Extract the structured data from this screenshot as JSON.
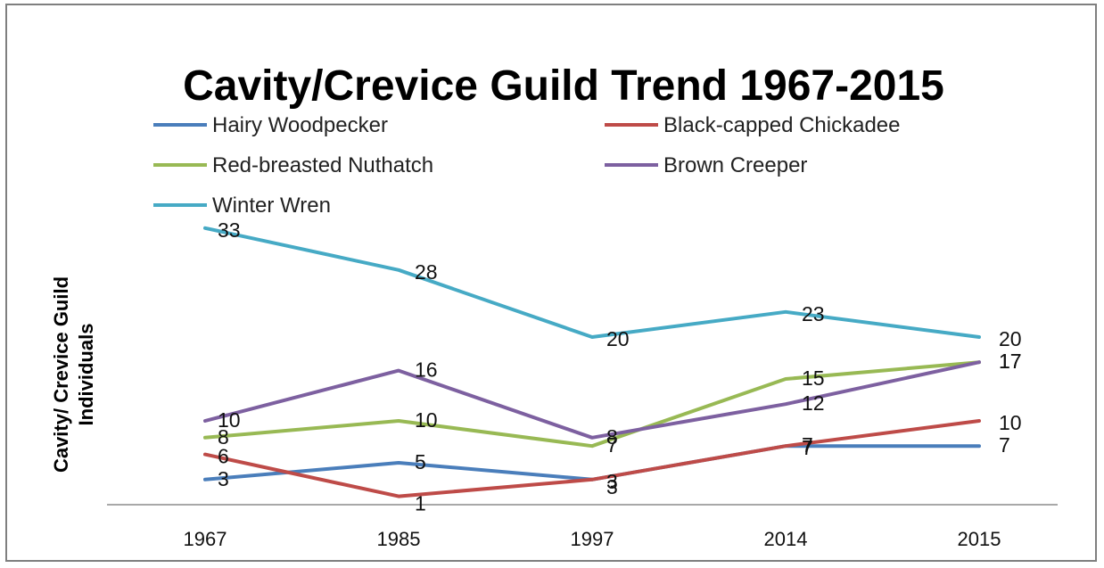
{
  "chart_data": {
    "type": "line",
    "title": "Cavity/Crevice Guild Trend 1967-2015",
    "ylabel_lines": [
      "Cavity/ Crevice Guild",
      "Individuals"
    ],
    "xlabel": "",
    "categories": [
      "1967",
      "1985",
      "1997",
      "2014",
      "2015"
    ],
    "ylim": [
      0,
      35
    ],
    "grid": false,
    "legend_position": "top",
    "series": [
      {
        "name": "Hairy Woodpecker",
        "color": "#4a7ebb",
        "values": [
          3,
          5,
          3,
          7,
          7
        ]
      },
      {
        "name": "Black-capped Chickadee",
        "color": "#be4b48",
        "values": [
          6,
          1,
          3,
          7,
          10
        ]
      },
      {
        "name": "Red-breasted Nuthatch",
        "color": "#98b954",
        "values": [
          8,
          10,
          7,
          15,
          17
        ]
      },
      {
        "name": "Brown Creeper",
        "color": "#7d60a0",
        "values": [
          10,
          16,
          8,
          12,
          17
        ]
      },
      {
        "name": "Winter Wren",
        "color": "#46aac5",
        "values": [
          33,
          28,
          20,
          23,
          20
        ]
      }
    ]
  }
}
